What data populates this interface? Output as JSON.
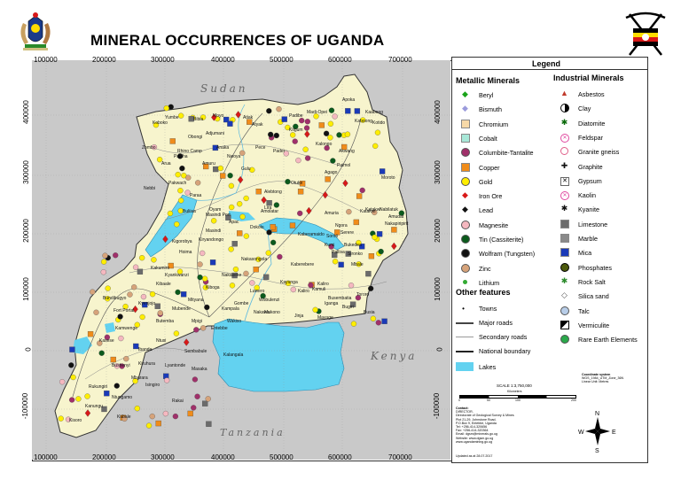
{
  "title": "MINERAL OCCURRENCES OF UGANDA",
  "x_ticks": [
    "100000",
    "200000",
    "300000",
    "400000",
    "500000",
    "600000",
    "700000"
  ],
  "y_ticks": [
    "400000",
    "300000",
    "200000",
    "100000",
    "0",
    "-100000"
  ],
  "countries": {
    "sudan": "Sudan",
    "kenya": "Kenya",
    "tanzania": "Tanzania"
  },
  "places": [
    {
      "name": "Apoka"
    },
    {
      "name": "Kaabong"
    },
    {
      "name": "Kotido"
    },
    {
      "name": "Moroto"
    },
    {
      "name": "Nakapiripirit"
    },
    {
      "name": "Nabilatuk"
    },
    {
      "name": "Amudat"
    },
    {
      "name": "Katakwi"
    },
    {
      "name": "Amuria"
    },
    {
      "name": "Kalongo"
    },
    {
      "name": "Kitgum"
    },
    {
      "name": "Pader"
    },
    {
      "name": "Padibe"
    },
    {
      "name": "Madi-Opei"
    },
    {
      "name": "Akwang"
    },
    {
      "name": "Paimol"
    },
    {
      "name": "Agago"
    },
    {
      "name": "Kaboong"
    },
    {
      "name": "Lira"
    },
    {
      "name": "Gulu"
    },
    {
      "name": "Anaka"
    },
    {
      "name": "Atiak"
    },
    {
      "name": "Yumbe"
    },
    {
      "name": "Koboko"
    },
    {
      "name": "Moyo"
    },
    {
      "name": "Adjumani"
    },
    {
      "name": "Arua"
    },
    {
      "name": "Nebbi"
    },
    {
      "name": "Pakwach"
    },
    {
      "name": "Rhino Camp"
    },
    {
      "name": "Obongi"
    },
    {
      "name": "Paraa"
    },
    {
      "name": "Buliisa"
    },
    {
      "name": "Kigorobya"
    },
    {
      "name": "Masindi"
    },
    {
      "name": "Masindi Port"
    },
    {
      "name": "Hoima"
    },
    {
      "name": "Kibaale"
    },
    {
      "name": "Kiboga"
    },
    {
      "name": "Nakaseke"
    },
    {
      "name": "Luwero"
    },
    {
      "name": "Wobulenzi"
    },
    {
      "name": "Kayunga"
    },
    {
      "name": "Kamuli"
    },
    {
      "name": "Kaliro"
    },
    {
      "name": "Pallisa"
    },
    {
      "name": "Soroti"
    },
    {
      "name": "Kumi"
    },
    {
      "name": "Mbale"
    },
    {
      "name": "Sironko"
    },
    {
      "name": "Bukedea"
    },
    {
      "name": "Tororo"
    },
    {
      "name": "Busia"
    },
    {
      "name": "Iganga"
    },
    {
      "name": "Bugiri"
    },
    {
      "name": "Mayuge"
    },
    {
      "name": "Jinja"
    },
    {
      "name": "Mukono"
    },
    {
      "name": "Kampala"
    },
    {
      "name": "Entebbe"
    },
    {
      "name": "Mpigi"
    },
    {
      "name": "Mityana"
    },
    {
      "name": "Mubende"
    },
    {
      "name": "Kyenjojo"
    },
    {
      "name": "Kasese"
    },
    {
      "name": "Bundibugyo"
    },
    {
      "name": "Fort Portal"
    },
    {
      "name": "Kamwenge"
    },
    {
      "name": "Ibanda"
    },
    {
      "name": "Mbarara"
    },
    {
      "name": "Bushenyi"
    },
    {
      "name": "Rukungiri"
    },
    {
      "name": "Kanungu"
    },
    {
      "name": "Kabale"
    },
    {
      "name": "Kisoro"
    },
    {
      "name": "Ntungamo"
    },
    {
      "name": "Isingiro"
    },
    {
      "name": "Rakai"
    },
    {
      "name": "Kalangala"
    },
    {
      "name": "Masaka"
    },
    {
      "name": "Sembabule"
    },
    {
      "name": "Lyantonde"
    },
    {
      "name": "Ntusi"
    },
    {
      "name": "Kiruhura"
    },
    {
      "name": "Nakasongola"
    },
    {
      "name": "Kiryandongo"
    },
    {
      "name": "Apac"
    },
    {
      "name": "Dokolo"
    },
    {
      "name": "Kaberamaido"
    },
    {
      "name": "Katakwi"
    },
    {
      "name": "Kaberebere"
    },
    {
      "name": "Ngora"
    },
    {
      "name": "Serere"
    },
    {
      "name": "Kaliro"
    },
    {
      "name": "Busembatia"
    },
    {
      "name": "Wakiso"
    },
    {
      "name": "Gombe"
    },
    {
      "name": "Butemba"
    },
    {
      "name": "Kakumiro"
    },
    {
      "name": "Kyankwanzi"
    },
    {
      "name": "Nakawa"
    },
    {
      "name": "Oyam"
    },
    {
      "name": "Amolatar"
    },
    {
      "name": "Alebtong"
    },
    {
      "name": "Otuke"
    },
    {
      "name": "Amuru"
    },
    {
      "name": "Nwoya"
    },
    {
      "name": "Zombo"
    },
    {
      "name": "Paidha"
    },
    {
      "name": "Bibia"
    },
    {
      "name": "Pece"
    },
    {
      "name": "Atyak"
    }
  ],
  "legend": {
    "title": "Legend",
    "metallic_heading": "Metallic Minerals",
    "industrial_heading": "Industrial Minerals",
    "other_heading": "Other features",
    "metallic": [
      {
        "label": "Beryl",
        "icon": "green-diamond",
        "color": "#1aa31a"
      },
      {
        "label": "Bismuth",
        "icon": "lavender-diamond",
        "color": "#9b9bdc"
      },
      {
        "label": "Chromium",
        "icon": "peach-square",
        "color": "#f7d9a8"
      },
      {
        "label": "Cobalt",
        "icon": "mint-square",
        "color": "#a8e8d8"
      },
      {
        "label": "Columbite-Tantalite",
        "icon": "purple-circle",
        "color": "#a0306a"
      },
      {
        "label": "Copper",
        "icon": "orange-square",
        "color": "#f08c1a"
      },
      {
        "label": "Gold",
        "icon": "yellow-circle",
        "color": "#ffee00"
      },
      {
        "label": "Iron  Ore",
        "icon": "red-diamond",
        "color": "#d81818"
      },
      {
        "label": "Lead",
        "icon": "black-diamond",
        "color": "#111111"
      },
      {
        "label": "Magnesite",
        "icon": "pink-circle",
        "color": "#f5b8c0"
      },
      {
        "label": "Tin (Cassiterite)",
        "icon": "dark-green-circle",
        "color": "#0b5a1c"
      },
      {
        "label": "Wolfram (Tungsten)",
        "icon": "black-circle",
        "color": "#111111"
      },
      {
        "label": "Zinc",
        "icon": "tan-circle",
        "color": "#d6a37a"
      },
      {
        "label": "Lithium",
        "icon": "green-dot",
        "color": "#33aa33"
      }
    ],
    "industrial": [
      {
        "label": "Asbestos",
        "icon": "red-triangle",
        "color": "#c0392b"
      },
      {
        "label": "Clay",
        "icon": "half-circle",
        "color": "#555555"
      },
      {
        "label": "Diatomite",
        "icon": "green-star",
        "color": "#0a6a0a"
      },
      {
        "label": "Feldspar",
        "icon": "pink-x-circle",
        "color": "#e04aa0"
      },
      {
        "label": "Granite gneiss",
        "icon": "pink-ring",
        "color": "#e0608a"
      },
      {
        "label": "Graphite",
        "icon": "black-cross",
        "color": "#111111"
      },
      {
        "label": "Gypsum",
        "icon": "x-square",
        "color": "#666666"
      },
      {
        "label": "Kaolin",
        "icon": "pink-x-circle",
        "color": "#e04aa0"
      },
      {
        "label": "Kyanite",
        "icon": "black-star",
        "color": "#111111"
      },
      {
        "label": "Limestone",
        "icon": "gray-square",
        "color": "#6b6b6b"
      },
      {
        "label": "Marble",
        "icon": "gray-square",
        "color": "#8a8a8a"
      },
      {
        "label": "Mica",
        "icon": "blue-square",
        "color": "#1a3ab8"
      },
      {
        "label": "Phosphates",
        "icon": "olive-circle",
        "color": "#4c5a0c"
      },
      {
        "label": "Rock Salt",
        "icon": "green-star",
        "color": "#2a8a2a"
      },
      {
        "label": "Silica sand",
        "icon": "white-diamond",
        "color": "#ffffff"
      },
      {
        "label": "Talc",
        "icon": "lightblue-circle",
        "color": "#b8cde8"
      },
      {
        "label": "Vermiculite",
        "icon": "half-square",
        "color": "#111111"
      },
      {
        "label": "Rare Earth Elements",
        "icon": "green-circle",
        "color": "#2aa84a"
      }
    ],
    "other": [
      {
        "label": "Towns"
      },
      {
        "label": "Major roads"
      },
      {
        "label": "Secondary roads"
      },
      {
        "label": "National boundary"
      },
      {
        "label": "Lakes"
      }
    ],
    "scale_label": "SCALE 1:3,750,000",
    "scale_unit": "Kilometers",
    "scale_ticks": [
      "0",
      "50",
      "100",
      "200"
    ],
    "coord_lines": [
      "Coordinate system",
      "WGS_1984_UTM_Zone_36N",
      "Linear Unit: Metres"
    ],
    "contact_lines": [
      "Contact:",
      "DIRECTOR,",
      "Directorate of Geological Survey & Mines",
      "Plot 21-29, Johnstone Road,",
      "P.O.Box 9, Entebbe, Uganda",
      "Tel: +256-414-320656",
      "Fax: +256-414-320364",
      "Email: dgsm@minerals.go.ug",
      "Website: www.dgsm.go.ug",
      "www.ugandamining.go.ug"
    ],
    "updated": "Updated as at 28.07.2017",
    "compass": {
      "n": "N",
      "s": "S",
      "e": "E",
      "w": "W"
    }
  },
  "colors": {
    "land": "#f7f4cd",
    "lake": "#63d2f0",
    "outside": "#c9c9c9",
    "boundary": "#333333"
  }
}
